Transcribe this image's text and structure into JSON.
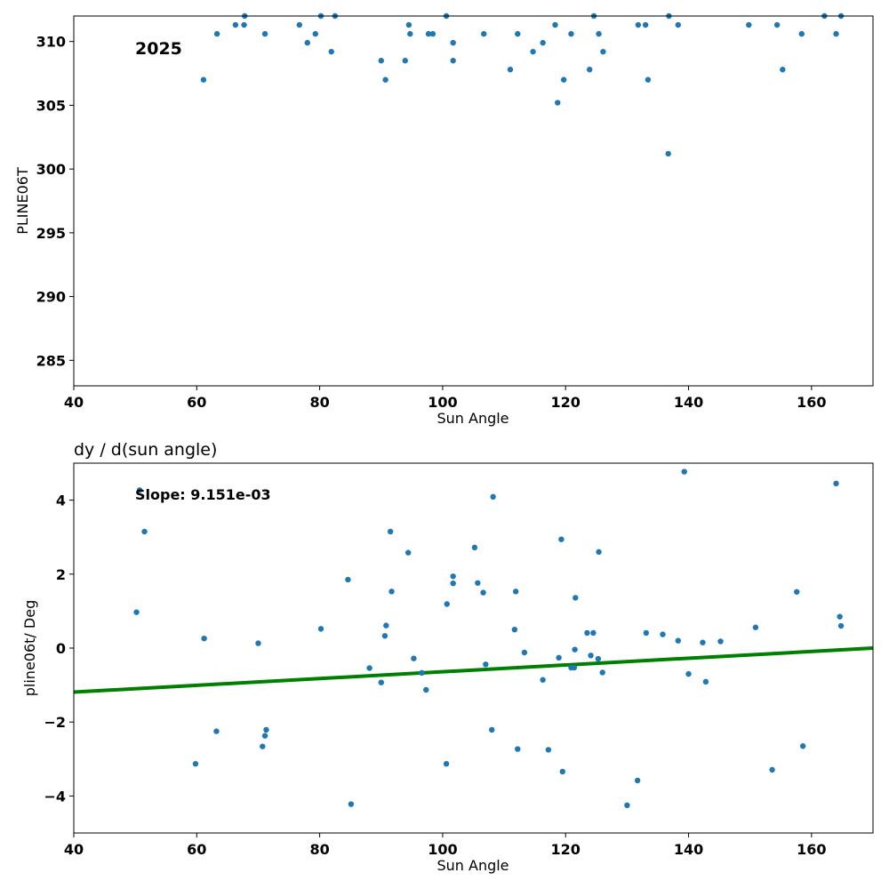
{
  "chart_data": [
    {
      "type": "scatter",
      "title": "",
      "xlabel": "Sun Angle",
      "ylabel": "PLINE06T",
      "xlim": [
        40,
        170
      ],
      "ylim": [
        283,
        312
      ],
      "xticks": [
        "40",
        "60",
        "80",
        "100",
        "120",
        "140",
        "160"
      ],
      "yticks": [
        "285",
        "290",
        "295",
        "300",
        "305",
        "310"
      ],
      "annotation": "2025",
      "point_color": "#1f77b4",
      "points": [
        [
          61.1,
          307.0
        ],
        [
          63.3,
          310.6
        ],
        [
          66.3,
          311.3
        ],
        [
          67.7,
          311.3
        ],
        [
          67.8,
          312.0
        ],
        [
          71.1,
          310.6
        ],
        [
          76.7,
          311.3
        ],
        [
          78.0,
          309.9
        ],
        [
          79.3,
          310.6
        ],
        [
          80.2,
          312.0
        ],
        [
          81.9,
          309.2
        ],
        [
          82.5,
          312.0
        ],
        [
          90.0,
          308.5
        ],
        [
          90.7,
          307.0
        ],
        [
          93.9,
          308.5
        ],
        [
          94.5,
          311.3
        ],
        [
          94.7,
          310.6
        ],
        [
          97.7,
          310.6
        ],
        [
          98.4,
          310.6
        ],
        [
          100.6,
          312.0
        ],
        [
          101.7,
          309.9
        ],
        [
          101.7,
          308.5
        ],
        [
          106.7,
          310.6
        ],
        [
          111.0,
          307.8
        ],
        [
          112.2,
          310.6
        ],
        [
          114.7,
          309.2
        ],
        [
          116.3,
          309.9
        ],
        [
          118.3,
          311.3
        ],
        [
          118.7,
          305.2
        ],
        [
          119.7,
          307.0
        ],
        [
          120.9,
          310.6
        ],
        [
          123.9,
          307.8
        ],
        [
          124.6,
          312.0
        ],
        [
          125.4,
          310.6
        ],
        [
          126.1,
          309.2
        ],
        [
          131.8,
          311.3
        ],
        [
          133.0,
          311.3
        ],
        [
          133.4,
          307.0
        ],
        [
          136.7,
          301.2
        ],
        [
          136.8,
          312.0
        ],
        [
          138.3,
          311.3
        ],
        [
          149.8,
          311.3
        ],
        [
          154.4,
          311.3
        ],
        [
          155.3,
          307.8
        ],
        [
          158.4,
          310.6
        ],
        [
          162.1,
          312.0
        ],
        [
          164.0,
          310.6
        ],
        [
          164.8,
          312.0
        ]
      ]
    },
    {
      "type": "scatter",
      "title": "dy / d(sun angle)",
      "xlabel": "Sun Angle",
      "ylabel": "pline06t/ Deg",
      "xlim": [
        40,
        170
      ],
      "ylim": [
        -5,
        5
      ],
      "xticks": [
        "40",
        "60",
        "80",
        "100",
        "120",
        "140",
        "160"
      ],
      "yticks": [
        "−4",
        "−2",
        "0",
        "2",
        "4"
      ],
      "annotation": "Slope: 9.151e-03",
      "point_color": "#1f77b4",
      "fit_line": {
        "color": "#008000",
        "x": [
          40,
          170
        ],
        "y": [
          -1.19,
          0.0
        ]
      },
      "points": [
        [
          50.2,
          0.97
        ],
        [
          50.7,
          4.27
        ],
        [
          51.5,
          3.15
        ],
        [
          59.8,
          -3.13
        ],
        [
          61.2,
          0.26
        ],
        [
          63.2,
          -2.25
        ],
        [
          70.0,
          0.13
        ],
        [
          70.7,
          -2.66
        ],
        [
          71.1,
          -2.37
        ],
        [
          71.3,
          -2.21
        ],
        [
          80.2,
          0.52
        ],
        [
          84.6,
          1.85
        ],
        [
          85.1,
          -4.22
        ],
        [
          88.1,
          -0.54
        ],
        [
          90.0,
          -0.93
        ],
        [
          90.6,
          0.33
        ],
        [
          90.8,
          0.61
        ],
        [
          91.5,
          3.15
        ],
        [
          91.7,
          1.53
        ],
        [
          94.4,
          2.58
        ],
        [
          95.3,
          -0.28
        ],
        [
          96.6,
          -0.67
        ],
        [
          97.3,
          -1.13
        ],
        [
          100.6,
          -3.13
        ],
        [
          100.7,
          1.19
        ],
        [
          101.7,
          1.94
        ],
        [
          101.7,
          1.75
        ],
        [
          105.2,
          2.72
        ],
        [
          105.7,
          1.76
        ],
        [
          106.6,
          1.5
        ],
        [
          107.0,
          -0.44
        ],
        [
          108.0,
          -2.21
        ],
        [
          108.2,
          4.09
        ],
        [
          111.7,
          0.5
        ],
        [
          111.9,
          1.53
        ],
        [
          112.2,
          -2.73
        ],
        [
          113.3,
          -0.12
        ],
        [
          116.3,
          -0.86
        ],
        [
          117.2,
          -2.75
        ],
        [
          118.9,
          -0.26
        ],
        [
          119.3,
          2.94
        ],
        [
          119.5,
          -3.34
        ],
        [
          120.9,
          -0.53
        ],
        [
          121.4,
          -0.53
        ],
        [
          121.5,
          -0.04
        ],
        [
          121.6,
          1.36
        ],
        [
          123.5,
          0.41
        ],
        [
          124.1,
          -0.2
        ],
        [
          124.5,
          0.41
        ],
        [
          125.3,
          -0.29
        ],
        [
          125.4,
          2.6
        ],
        [
          126.0,
          -0.66
        ],
        [
          130.0,
          -4.25
        ],
        [
          131.7,
          -3.58
        ],
        [
          133.1,
          0.41
        ],
        [
          135.8,
          0.37
        ],
        [
          138.3,
          0.2
        ],
        [
          139.3,
          4.77
        ],
        [
          140.0,
          -0.7
        ],
        [
          142.3,
          0.15
        ],
        [
          142.8,
          -0.91
        ],
        [
          145.2,
          0.18
        ],
        [
          150.9,
          0.56
        ],
        [
          153.6,
          -3.29
        ],
        [
          157.6,
          1.52
        ],
        [
          158.6,
          -2.65
        ],
        [
          164.0,
          4.45
        ],
        [
          164.6,
          0.85
        ],
        [
          164.8,
          0.6
        ]
      ]
    }
  ]
}
